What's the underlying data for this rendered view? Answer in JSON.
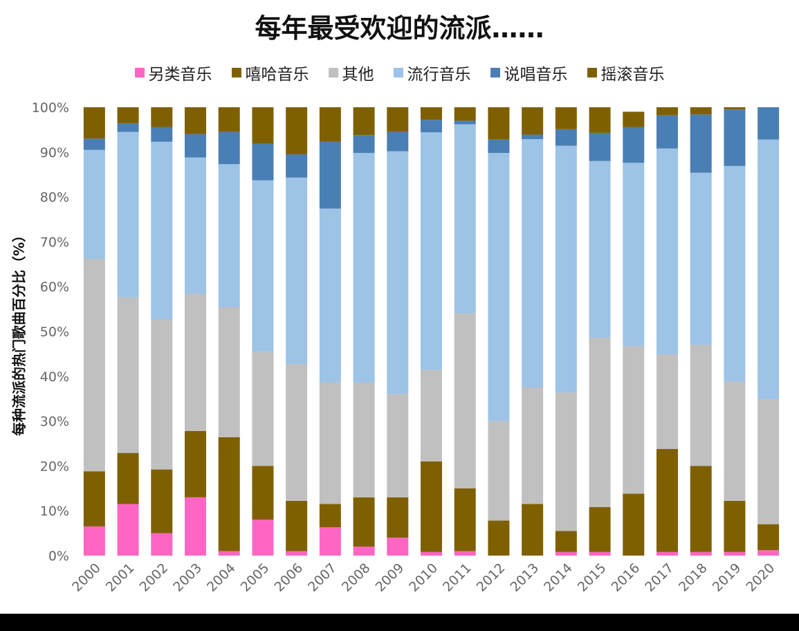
{
  "title": "每年最受欢迎的流派……",
  "legend": [
    {
      "label": "另类音乐",
      "color": "#ff66c4"
    },
    {
      "label": "嘻哈音乐",
      "color": "#7f6000"
    },
    {
      "label": "其他",
      "color": "#c0c0c0"
    },
    {
      "label": "流行音乐",
      "color": "#9dc3e6"
    },
    {
      "label": "说唱音乐",
      "color": "#4a7fb5"
    },
    {
      "label": "摇滚音乐",
      "color": "#7f6000"
    }
  ],
  "chart_data": {
    "type": "bar",
    "stacked": true,
    "title": "每年最受欢迎的流派……",
    "xlabel": "",
    "ylabel": "每种流派的热门歌曲百分比（%）",
    "ylim": [
      0,
      100
    ],
    "y_ticks": [
      "0%",
      "10%",
      "20%",
      "30%",
      "40%",
      "50%",
      "60%",
      "70%",
      "80%",
      "90%",
      "100%"
    ],
    "grid": false,
    "legend_position": "top",
    "categories": [
      "2000",
      "2001",
      "2002",
      "2003",
      "2004",
      "2005",
      "2006",
      "2007",
      "2008",
      "2009",
      "2010",
      "2011",
      "2012",
      "2013",
      "2014",
      "2015",
      "2016",
      "2017",
      "2018",
      "2019",
      "2020"
    ],
    "series": [
      {
        "name": "另类音乐",
        "color": "#ff66c4",
        "values": [
          6.5,
          11.5,
          5,
          13,
          1,
          8,
          1,
          6.3,
          2,
          4,
          0.8,
          1,
          0,
          0,
          0.8,
          0.8,
          0,
          0.8,
          0.8,
          0.8,
          1.2
        ]
      },
      {
        "name": "嘻哈音乐",
        "color": "#7f6000",
        "values": [
          12.3,
          11.4,
          14.2,
          14.8,
          25.4,
          12,
          11.2,
          5.2,
          11,
          9,
          20.2,
          14,
          7.8,
          11.5,
          4.7,
          10,
          13.8,
          23,
          19.2,
          11.4,
          5.8
        ]
      },
      {
        "name": "其他",
        "color": "#c0c0c0",
        "values": [
          47.4,
          34.7,
          33.5,
          30.6,
          29,
          25.4,
          30.5,
          27.1,
          25.6,
          23,
          20.4,
          39,
          22.2,
          26,
          30.9,
          37.8,
          32.9,
          21.1,
          27,
          26.6,
          27.9
        ]
      },
      {
        "name": "流行音乐",
        "color": "#9dc3e6",
        "values": [
          24.3,
          36.9,
          39.6,
          30.4,
          31.9,
          38.3,
          41.6,
          38.8,
          51.2,
          54.2,
          53,
          42.2,
          59.8,
          55.4,
          55,
          39.4,
          40.9,
          45.9,
          38.4,
          48.1,
          57.9
        ]
      },
      {
        "name": "说唱音乐",
        "color": "#4a7fb5",
        "values": [
          2.5,
          1.9,
          3.3,
          5.2,
          7.2,
          8.2,
          5.2,
          14.9,
          4,
          4.3,
          2.8,
          0.8,
          3,
          1,
          3.7,
          6.3,
          8,
          7.4,
          13,
          12.6,
          7.2
        ]
      },
      {
        "name": "摇滚音乐",
        "color": "#7f6000",
        "values": [
          7,
          3.6,
          4.4,
          6,
          5.5,
          8.1,
          10.5,
          7.7,
          6.2,
          5.5,
          2.8,
          3,
          7.2,
          6.1,
          4.9,
          5.7,
          3.4,
          1.8,
          1.6,
          0.5,
          0
        ]
      }
    ]
  }
}
